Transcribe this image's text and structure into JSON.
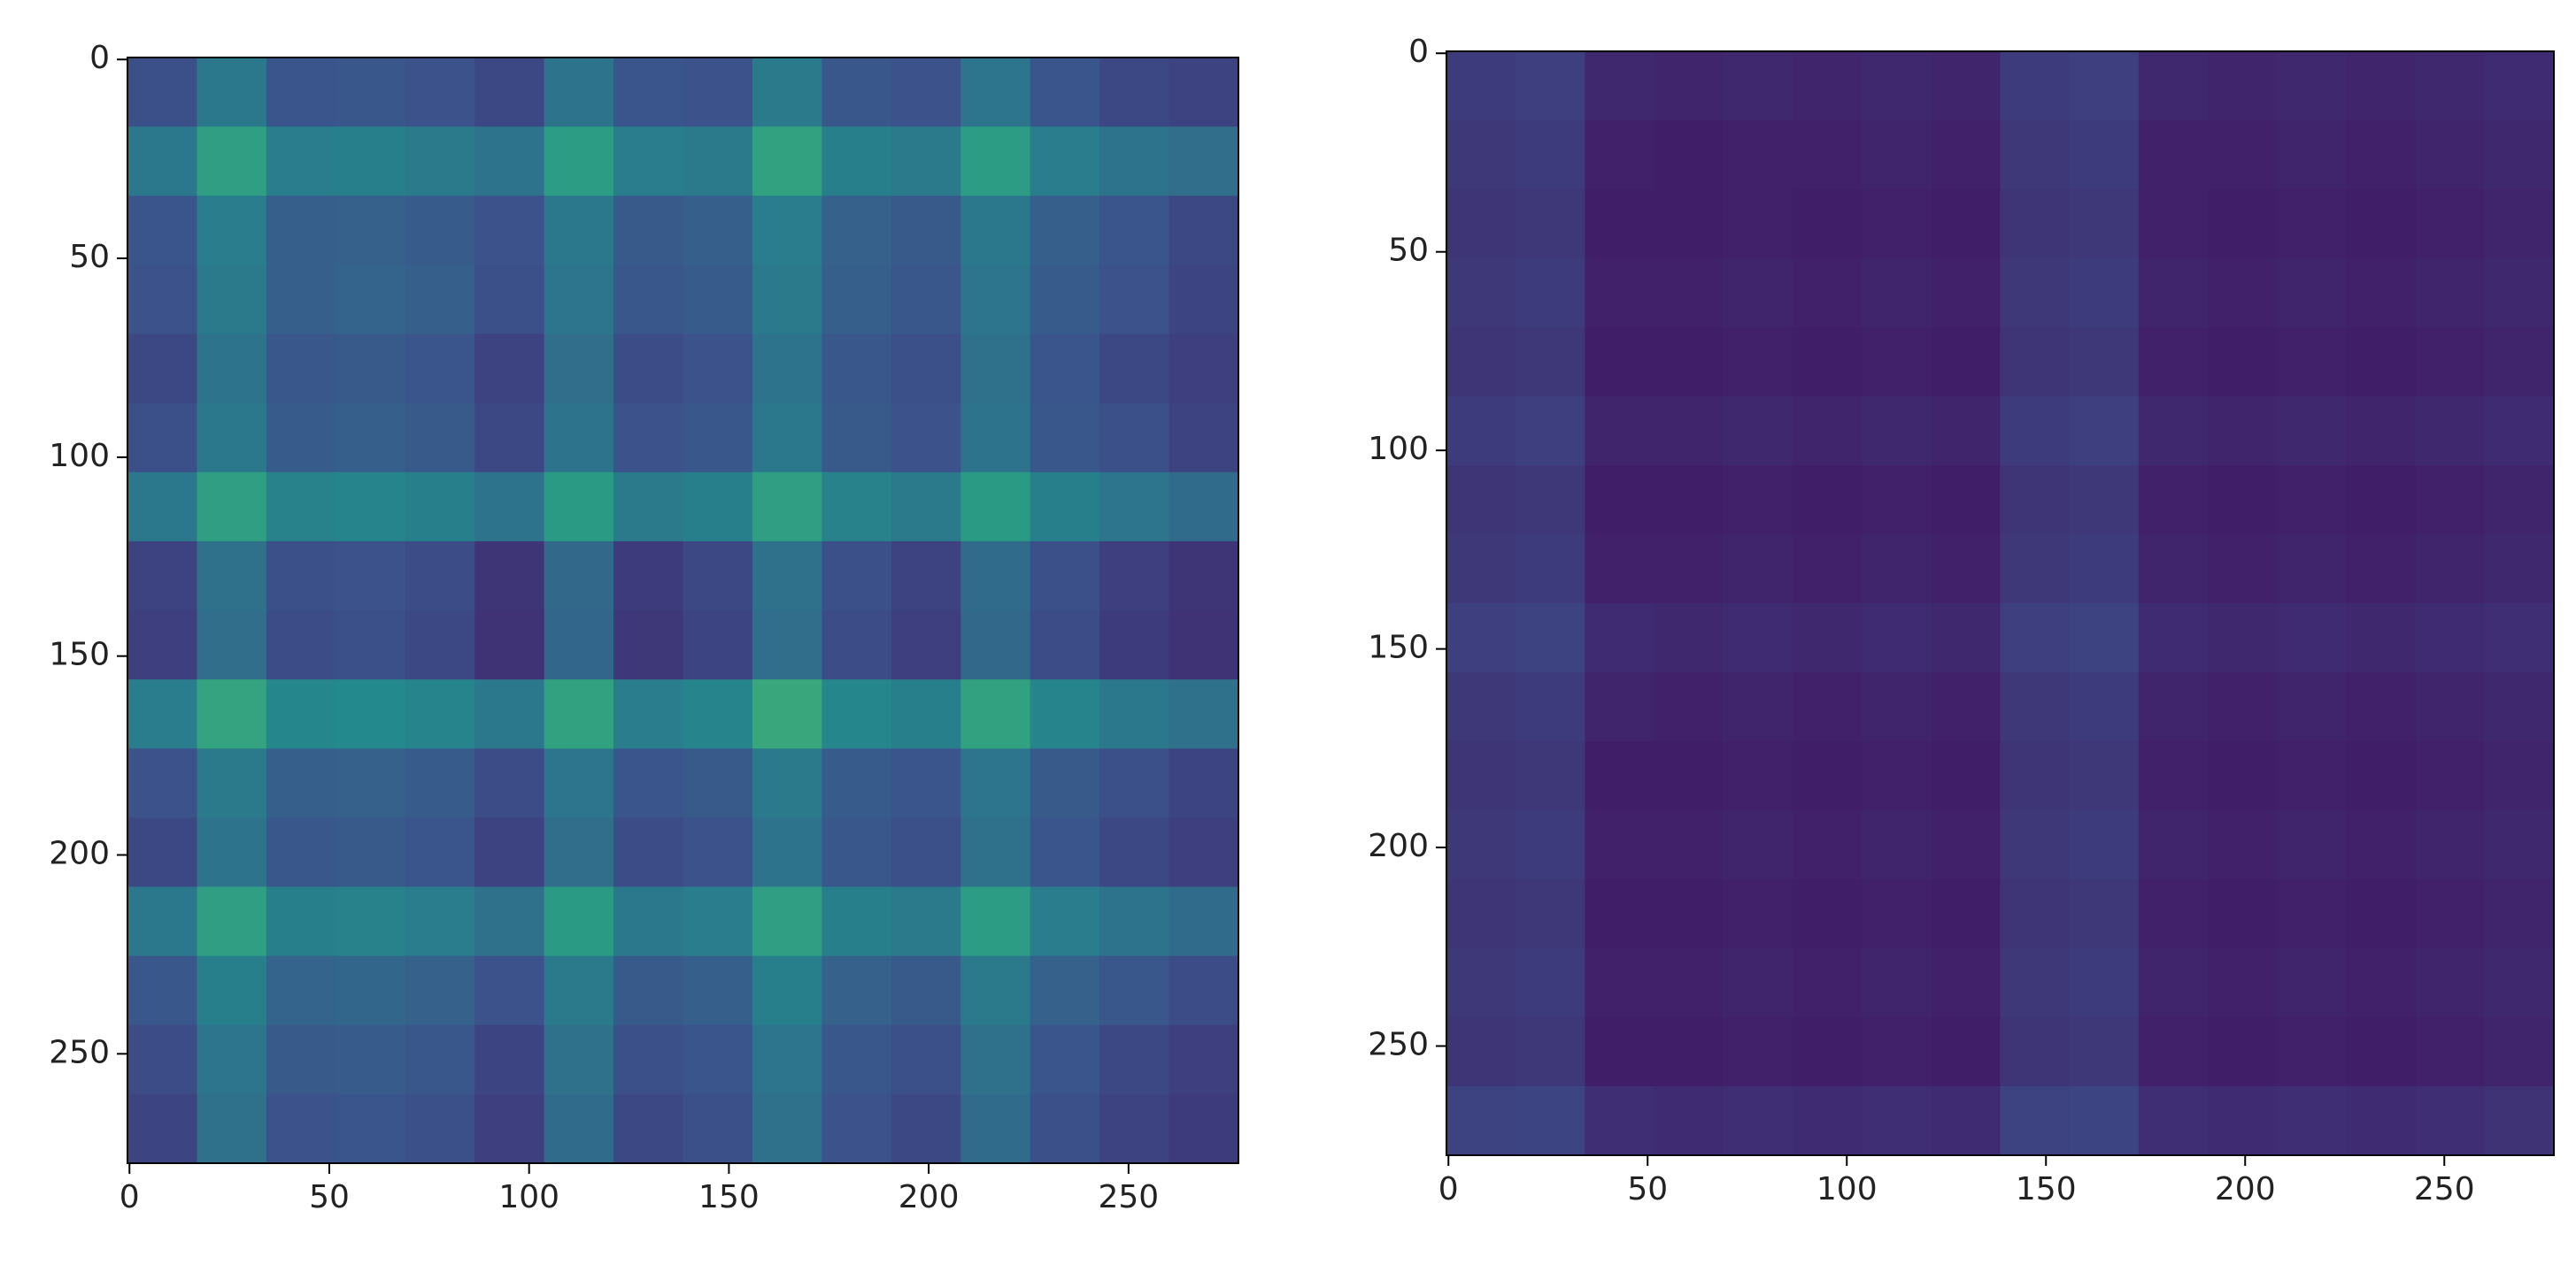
{
  "chart_data": [
    {
      "type": "heatmap",
      "colormap": "viridis",
      "clim": [
        0,
        1
      ],
      "xlim": [
        -0.5,
        277.5
      ],
      "ylim": [
        277.5,
        -0.5
      ],
      "xticks": [
        0,
        50,
        100,
        150,
        200,
        250
      ],
      "yticks": [
        0,
        50,
        100,
        150,
        200,
        250
      ],
      "z": [
        [
          0.24,
          0.4,
          0.26,
          0.27,
          0.25,
          0.22,
          0.38,
          0.26,
          0.25,
          0.41,
          0.27,
          0.25,
          0.39,
          0.26,
          0.22,
          0.2
        ],
        [
          0.4,
          0.56,
          0.42,
          0.43,
          0.41,
          0.38,
          0.55,
          0.42,
          0.41,
          0.57,
          0.43,
          0.41,
          0.55,
          0.42,
          0.38,
          0.36
        ],
        [
          0.26,
          0.42,
          0.3,
          0.31,
          0.29,
          0.25,
          0.4,
          0.28,
          0.3,
          0.42,
          0.31,
          0.28,
          0.4,
          0.3,
          0.26,
          0.22
        ],
        [
          0.25,
          0.41,
          0.3,
          0.32,
          0.3,
          0.24,
          0.39,
          0.27,
          0.29,
          0.41,
          0.3,
          0.27,
          0.39,
          0.29,
          0.25,
          0.21
        ],
        [
          0.22,
          0.38,
          0.27,
          0.28,
          0.26,
          0.2,
          0.36,
          0.23,
          0.25,
          0.38,
          0.27,
          0.24,
          0.37,
          0.26,
          0.22,
          0.19
        ],
        [
          0.24,
          0.4,
          0.29,
          0.3,
          0.28,
          0.22,
          0.38,
          0.25,
          0.27,
          0.4,
          0.28,
          0.25,
          0.38,
          0.27,
          0.24,
          0.2
        ],
        [
          0.4,
          0.56,
          0.44,
          0.45,
          0.43,
          0.38,
          0.54,
          0.41,
          0.43,
          0.56,
          0.44,
          0.41,
          0.54,
          0.43,
          0.39,
          0.35
        ],
        [
          0.2,
          0.37,
          0.24,
          0.25,
          0.23,
          0.16,
          0.34,
          0.18,
          0.22,
          0.37,
          0.24,
          0.2,
          0.35,
          0.24,
          0.19,
          0.16
        ],
        [
          0.19,
          0.36,
          0.23,
          0.24,
          0.22,
          0.15,
          0.33,
          0.17,
          0.21,
          0.36,
          0.23,
          0.19,
          0.34,
          0.23,
          0.18,
          0.15
        ],
        [
          0.42,
          0.58,
          0.46,
          0.47,
          0.45,
          0.4,
          0.57,
          0.42,
          0.45,
          0.6,
          0.46,
          0.43,
          0.57,
          0.45,
          0.4,
          0.37
        ],
        [
          0.25,
          0.41,
          0.3,
          0.31,
          0.29,
          0.23,
          0.39,
          0.26,
          0.28,
          0.41,
          0.29,
          0.26,
          0.39,
          0.28,
          0.24,
          0.21
        ],
        [
          0.22,
          0.38,
          0.27,
          0.28,
          0.26,
          0.2,
          0.36,
          0.23,
          0.25,
          0.38,
          0.27,
          0.24,
          0.37,
          0.26,
          0.22,
          0.19
        ],
        [
          0.4,
          0.56,
          0.43,
          0.44,
          0.42,
          0.37,
          0.54,
          0.4,
          0.42,
          0.56,
          0.43,
          0.41,
          0.55,
          0.42,
          0.38,
          0.35
        ],
        [
          0.27,
          0.43,
          0.32,
          0.33,
          0.31,
          0.25,
          0.41,
          0.28,
          0.3,
          0.43,
          0.31,
          0.28,
          0.41,
          0.31,
          0.27,
          0.23
        ],
        [
          0.23,
          0.39,
          0.28,
          0.29,
          0.27,
          0.21,
          0.37,
          0.24,
          0.26,
          0.39,
          0.27,
          0.24,
          0.37,
          0.26,
          0.22,
          0.19
        ],
        [
          0.21,
          0.37,
          0.25,
          0.26,
          0.24,
          0.19,
          0.35,
          0.22,
          0.24,
          0.37,
          0.25,
          0.22,
          0.35,
          0.24,
          0.2,
          0.18
        ]
      ]
    },
    {
      "type": "heatmap",
      "colormap": "viridis",
      "clim": [
        0,
        1
      ],
      "xlim": [
        -0.5,
        277.5
      ],
      "ylim": [
        277.5,
        -0.5
      ],
      "xticks": [
        0,
        50,
        100,
        150,
        200,
        250
      ],
      "yticks": [
        0,
        50,
        100,
        150,
        200,
        250
      ],
      "z": [
        [
          0.18,
          0.19,
          0.12,
          0.11,
          0.12,
          0.11,
          0.12,
          0.11,
          0.18,
          0.19,
          0.12,
          0.11,
          0.12,
          0.11,
          0.12,
          0.13
        ],
        [
          0.17,
          0.18,
          0.1,
          0.09,
          0.1,
          0.1,
          0.11,
          0.1,
          0.17,
          0.18,
          0.1,
          0.1,
          0.11,
          0.1,
          0.11,
          0.12
        ],
        [
          0.16,
          0.17,
          0.09,
          0.09,
          0.1,
          0.09,
          0.1,
          0.09,
          0.16,
          0.17,
          0.1,
          0.09,
          0.1,
          0.09,
          0.1,
          0.11
        ],
        [
          0.17,
          0.18,
          0.1,
          0.1,
          0.11,
          0.1,
          0.11,
          0.1,
          0.17,
          0.18,
          0.11,
          0.1,
          0.11,
          0.1,
          0.11,
          0.12
        ],
        [
          0.16,
          0.17,
          0.09,
          0.09,
          0.1,
          0.09,
          0.1,
          0.09,
          0.16,
          0.17,
          0.1,
          0.09,
          0.1,
          0.09,
          0.1,
          0.11
        ],
        [
          0.18,
          0.19,
          0.11,
          0.11,
          0.12,
          0.11,
          0.12,
          0.11,
          0.18,
          0.19,
          0.12,
          0.11,
          0.12,
          0.11,
          0.12,
          0.13
        ],
        [
          0.16,
          0.17,
          0.09,
          0.09,
          0.1,
          0.09,
          0.1,
          0.09,
          0.16,
          0.17,
          0.1,
          0.09,
          0.1,
          0.09,
          0.1,
          0.11
        ],
        [
          0.17,
          0.18,
          0.1,
          0.1,
          0.11,
          0.1,
          0.11,
          0.1,
          0.17,
          0.18,
          0.11,
          0.1,
          0.11,
          0.1,
          0.11,
          0.12
        ],
        [
          0.19,
          0.2,
          0.13,
          0.12,
          0.13,
          0.12,
          0.13,
          0.12,
          0.19,
          0.2,
          0.13,
          0.12,
          0.13,
          0.12,
          0.13,
          0.14
        ],
        [
          0.17,
          0.18,
          0.11,
          0.1,
          0.11,
          0.1,
          0.11,
          0.1,
          0.17,
          0.18,
          0.11,
          0.1,
          0.11,
          0.1,
          0.11,
          0.12
        ],
        [
          0.16,
          0.17,
          0.09,
          0.09,
          0.1,
          0.09,
          0.1,
          0.09,
          0.16,
          0.17,
          0.1,
          0.09,
          0.1,
          0.09,
          0.1,
          0.11
        ],
        [
          0.17,
          0.18,
          0.1,
          0.1,
          0.11,
          0.1,
          0.11,
          0.1,
          0.17,
          0.18,
          0.11,
          0.1,
          0.11,
          0.1,
          0.11,
          0.12
        ],
        [
          0.16,
          0.17,
          0.09,
          0.09,
          0.1,
          0.09,
          0.1,
          0.09,
          0.16,
          0.17,
          0.1,
          0.09,
          0.1,
          0.09,
          0.1,
          0.11
        ],
        [
          0.17,
          0.18,
          0.1,
          0.1,
          0.11,
          0.1,
          0.11,
          0.1,
          0.17,
          0.18,
          0.11,
          0.1,
          0.11,
          0.1,
          0.11,
          0.12
        ],
        [
          0.16,
          0.17,
          0.09,
          0.09,
          0.1,
          0.09,
          0.1,
          0.09,
          0.16,
          0.17,
          0.1,
          0.09,
          0.1,
          0.09,
          0.1,
          0.11
        ],
        [
          0.2,
          0.21,
          0.14,
          0.13,
          0.14,
          0.13,
          0.14,
          0.13,
          0.2,
          0.21,
          0.14,
          0.13,
          0.14,
          0.13,
          0.14,
          0.15
        ]
      ]
    }
  ]
}
